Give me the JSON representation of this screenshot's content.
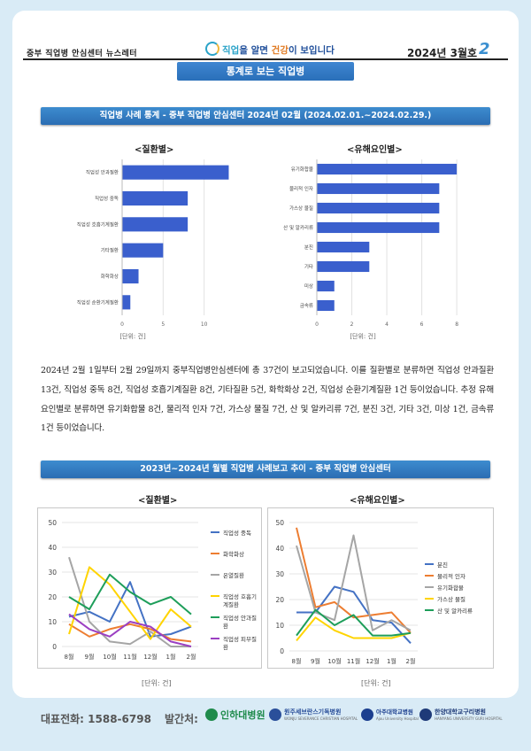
{
  "header": {
    "newsletter": "중부 직업병 안심센터 뉴스레터",
    "slogan_a": "직업",
    "slogan_b": "을 알면 ",
    "slogan_c": "건강",
    "slogan_d": "이 보입니다",
    "issue": "2024년 3월호",
    "page": "2"
  },
  "section_tab": "통계로 보는 직업병",
  "stats_title": "직업병 사례 통계 - 중부 직업병 안심센터   2024년 02월 (2024.02.01.~2024.02.29.)",
  "trend_title": "2023년~2024년 월별 직업병 사례보고 추이 - 중부 직업병 안심센터",
  "sub_disease": "<질환별>",
  "sub_factor": "<유해요인별>",
  "unit": "[단위: 건]",
  "paragraph": "2024년 2월 1일부터 2월 29일까지 중부직업병안심센터에 총 37건이 보고되었습니다. 이를 질환별로 분류하면 직업성 안과질환 13건, 직업성 중독 8건, 직업성 호흡기계질환 8건, 기타질환 5건, 화학화상 2건, 직업성 순환기계질환 1건 등이었습니다. 추정 유해요인별로 분류하면 유기화합물 8건, 물리적 인자 7건, 가스상 물질 7건, 산 및 알카리류 7건, 분진 3건, 기타 3건, 미상 1건, 금속류 1건 등이었습니다.",
  "chart_data": [
    {
      "type": "bar",
      "orientation": "horizontal",
      "title": "<질환별>",
      "categories": [
        "직업성 안과질환",
        "직업성 중독",
        "직업성 호흡기계질환",
        "기타질환",
        "화학화상",
        "직업성 순환기계질환"
      ],
      "values": [
        13,
        8,
        8,
        5,
        2,
        1
      ],
      "xlim": [
        0,
        15
      ],
      "ticks": [
        0,
        5,
        10
      ],
      "unit": "[단위: 건]",
      "color": "#3a5fcd"
    },
    {
      "type": "bar",
      "orientation": "horizontal",
      "title": "<유해요인별>",
      "categories": [
        "유기화합물",
        "물리적 인자",
        "가스상 물질",
        "산 및 알카리류",
        "분진",
        "기타",
        "미상",
        "금속류"
      ],
      "values": [
        8,
        7,
        7,
        7,
        3,
        3,
        1,
        1
      ],
      "xlim": [
        0,
        8.5
      ],
      "ticks": [
        0,
        2,
        4,
        6,
        8
      ],
      "unit": "[단위: 건]",
      "color": "#3a5fcd"
    },
    {
      "type": "line",
      "title": "<질환별>",
      "x": [
        "8월",
        "9월",
        "10월",
        "11월",
        "12월",
        "1월",
        "2월"
      ],
      "ylim": [
        0,
        50
      ],
      "yticks": [
        0,
        10,
        20,
        30,
        40,
        50
      ],
      "unit": "[단위: 건]",
      "series": [
        {
          "name": "직업성 중독",
          "color": "#4472c4",
          "values": [
            12,
            14,
            10,
            26,
            4,
            5,
            8
          ]
        },
        {
          "name": "화학화상",
          "color": "#ed7d31",
          "values": [
            9,
            4,
            7,
            9,
            7,
            3,
            2
          ]
        },
        {
          "name": "온열질환",
          "color": "#a5a5a5",
          "values": [
            36,
            10,
            2,
            1,
            6,
            0,
            0
          ]
        },
        {
          "name": "직업성 호흡기계질환",
          "color": "#ffd400",
          "values": [
            5,
            32,
            25,
            14,
            3,
            15,
            8
          ]
        },
        {
          "name": "직업성 안과질환",
          "color": "#1e9e5a",
          "values": [
            20,
            15,
            29,
            22,
            17,
            20,
            13
          ]
        },
        {
          "name": "직업성 피부질환",
          "color": "#9b3fc2",
          "values": [
            13,
            7,
            4,
            10,
            8,
            2,
            0
          ]
        }
      ]
    },
    {
      "type": "line",
      "title": "<유해요인별>",
      "x": [
        "8월",
        "9월",
        "10월",
        "11월",
        "12월",
        "1월",
        "2월"
      ],
      "ylim": [
        0,
        50
      ],
      "yticks": [
        0,
        10,
        20,
        30,
        40,
        50
      ],
      "unit": "[단위: 건]",
      "series": [
        {
          "name": "분진",
          "color": "#4472c4",
          "values": [
            15,
            15,
            25,
            23,
            12,
            11,
            3
          ]
        },
        {
          "name": "물리적 인자",
          "color": "#ed7d31",
          "values": [
            48,
            17,
            19,
            13,
            14,
            15,
            7
          ]
        },
        {
          "name": "유기화합물",
          "color": "#a5a5a5",
          "values": [
            41,
            15,
            12,
            45,
            8,
            12,
            8
          ]
        },
        {
          "name": "가스상 물질",
          "color": "#ffd400",
          "values": [
            4,
            13,
            8,
            5,
            5,
            5,
            7
          ]
        },
        {
          "name": "산 및 알카리류",
          "color": "#1e9e5a",
          "values": [
            6,
            16,
            10,
            14,
            6,
            6,
            7
          ]
        }
      ]
    }
  ],
  "footer": {
    "tel_label": "대표전화:",
    "tel": "1588-6798",
    "publisher_label": "발간처:",
    "logos": [
      {
        "name": "인하대병원",
        "color": "#1f8b4c"
      },
      {
        "name": "원주세브란스기독병원",
        "color": "#2a4f9a",
        "sub": "WONJU SEVERANCE CHRISTIAN HOSPITAL"
      },
      {
        "name": "아주대학교병원",
        "color": "#1c3f8f",
        "sub": "Ajou University Hospital"
      },
      {
        "name": "한양대학교구리병원",
        "color": "#1e3a78",
        "sub": "HANYANG UNIVERSITY GURI HOSPITAL"
      }
    ]
  }
}
